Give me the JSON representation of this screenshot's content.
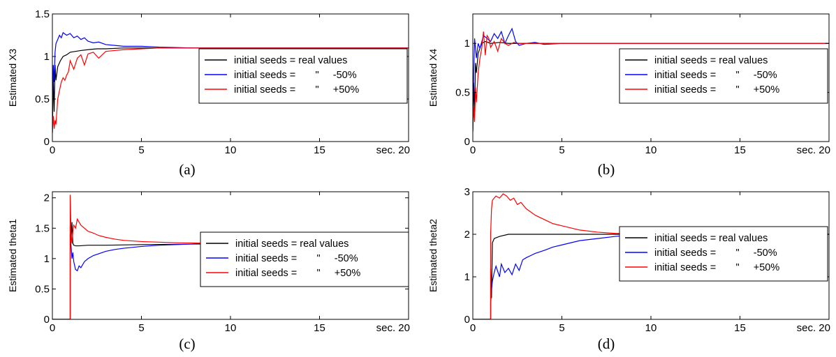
{
  "figure": {
    "panel_captions": [
      "(a)",
      "(b)",
      "(c)",
      "(d)"
    ]
  },
  "chart_data": [
    {
      "type": "line",
      "caption": "(a)",
      "title": "",
      "xlabel": "",
      "ylabel": "Estimated X3",
      "xlim": [
        0,
        20
      ],
      "ylim": [
        0,
        1.5
      ],
      "xticks": [
        0,
        5,
        10,
        15,
        20
      ],
      "xtick_labels": [
        "0",
        "5",
        "10",
        "15",
        "sec. 20"
      ],
      "yticks": [
        0,
        0.5,
        1,
        1.5
      ],
      "ytick_labels": [
        "0",
        "0.5",
        "1",
        "1.5"
      ],
      "grid": false,
      "legend_position": "center-right",
      "series": [
        {
          "name": "initial seeds = real values",
          "color": "#000000",
          "x": [
            0,
            0.05,
            0.1,
            0.15,
            0.2,
            0.3,
            0.45,
            0.6,
            0.8,
            1.0,
            1.3,
            1.6,
            2.0,
            2.5,
            3.0,
            4.0,
            5.0,
            6.0,
            7.0,
            8.0,
            10.0,
            12.0,
            15.0,
            20.0
          ],
          "y": [
            0.1,
            0.75,
            0.35,
            0.9,
            0.72,
            0.88,
            0.95,
            1.0,
            1.02,
            1.05,
            1.06,
            1.07,
            1.08,
            1.09,
            1.09,
            1.1,
            1.1,
            1.1,
            1.1,
            1.1,
            1.1,
            1.1,
            1.1,
            1.1
          ]
        },
        {
          "name": "initial seeds =       \"     -50%",
          "color": "#0000ff",
          "x": [
            0,
            0.05,
            0.1,
            0.15,
            0.2,
            0.3,
            0.4,
            0.5,
            0.6,
            0.8,
            1.0,
            1.2,
            1.4,
            1.6,
            1.8,
            2.0,
            2.3,
            2.6,
            3.0,
            3.5,
            4.0,
            5.0,
            6.0,
            8.0,
            10.0,
            15.0,
            20.0
          ],
          "y": [
            0.3,
            0.9,
            0.7,
            1.05,
            1.15,
            1.2,
            1.25,
            1.22,
            1.28,
            1.25,
            1.27,
            1.22,
            1.24,
            1.2,
            1.22,
            1.18,
            1.16,
            1.17,
            1.14,
            1.13,
            1.12,
            1.12,
            1.11,
            1.1,
            1.1,
            1.1,
            1.1
          ]
        },
        {
          "name": "initial seeds =       \"     +50%",
          "color": "#ff0000",
          "x": [
            0,
            0.05,
            0.1,
            0.15,
            0.2,
            0.3,
            0.4,
            0.5,
            0.6,
            0.7,
            0.8,
            0.9,
            1.0,
            1.2,
            1.4,
            1.6,
            1.8,
            2.0,
            2.3,
            2.6,
            3.0,
            3.5,
            4.0,
            5.0,
            6.0,
            8.0,
            10.0,
            20.0
          ],
          "y": [
            0.1,
            0.3,
            0.15,
            0.25,
            0.2,
            0.5,
            0.6,
            0.7,
            0.75,
            0.72,
            0.78,
            0.82,
            0.95,
            0.85,
            0.98,
            1.02,
            0.9,
            1.03,
            1.05,
            0.98,
            1.06,
            1.07,
            1.08,
            1.09,
            1.1,
            1.1,
            1.1,
            1.1
          ]
        }
      ]
    },
    {
      "type": "line",
      "caption": "(b)",
      "title": "",
      "xlabel": "",
      "ylabel": "Estimated X4",
      "xlim": [
        0,
        20
      ],
      "ylim": [
        0,
        1.3
      ],
      "xticks": [
        0,
        5,
        10,
        15,
        20
      ],
      "xtick_labels": [
        "0",
        "5",
        "10",
        "15",
        "sec. 20"
      ],
      "yticks": [
        0,
        0.5,
        1
      ],
      "ytick_labels": [
        "0",
        "0.5",
        "1"
      ],
      "grid": false,
      "legend_position": "center-right",
      "series": [
        {
          "name": "initial seeds = real values",
          "color": "#000000",
          "x": [
            0,
            0.05,
            0.1,
            0.15,
            0.2,
            0.3,
            0.4,
            0.5,
            0.7,
            1.0,
            1.5,
            2.0,
            3.0,
            5.0,
            10.0,
            20.0
          ],
          "y": [
            0.1,
            0.6,
            0.3,
            0.8,
            0.7,
            0.9,
            0.95,
            1.0,
            1.02,
            1.0,
            1.01,
            1.0,
            1.0,
            1.0,
            1.0,
            1.0
          ]
        },
        {
          "name": "initial seeds =       \"     -50%",
          "color": "#0000ff",
          "x": [
            0,
            0.05,
            0.1,
            0.15,
            0.2,
            0.3,
            0.4,
            0.6,
            0.8,
            1.0,
            1.2,
            1.4,
            1.6,
            1.8,
            2.0,
            2.2,
            2.4,
            2.6,
            3.0,
            3.5,
            4.0,
            5.0,
            5.2,
            10.0,
            20.0
          ],
          "y": [
            0.2,
            0.7,
            1.05,
            0.95,
            0.85,
            1.0,
            0.95,
            1.08,
            1.05,
            1.02,
            1.1,
            1.05,
            1.12,
            1.0,
            1.08,
            1.15,
            1.02,
            0.98,
            1.0,
            1.01,
            0.99,
            1.0,
            1.0,
            1.0,
            1.0
          ]
        },
        {
          "name": "initial seeds =       \"     +50%",
          "color": "#ff0000",
          "x": [
            0,
            0.05,
            0.1,
            0.15,
            0.2,
            0.3,
            0.4,
            0.5,
            0.6,
            0.7,
            0.8,
            0.9,
            1.0,
            1.2,
            1.4,
            1.6,
            1.8,
            2.0,
            2.3,
            2.6,
            3.0,
            4.0,
            5.0,
            10.0,
            20.0
          ],
          "y": [
            0.1,
            0.35,
            0.2,
            0.55,
            0.4,
            0.7,
            0.85,
            0.95,
            1.12,
            0.88,
            1.08,
            1.05,
            0.96,
            1.02,
            0.92,
            1.05,
            1.0,
            0.98,
            1.01,
            1.0,
            1.0,
            1.0,
            1.0,
            1.0,
            1.0
          ]
        }
      ]
    },
    {
      "type": "line",
      "caption": "(c)",
      "title": "",
      "xlabel": "",
      "ylabel": "Estimated theta1",
      "xlim": [
        0,
        20
      ],
      "ylim": [
        0,
        2.1
      ],
      "xticks": [
        0,
        5,
        10,
        15,
        20
      ],
      "xtick_labels": [
        "0",
        "5",
        "10",
        "15",
        "sec. 20"
      ],
      "yticks": [
        0,
        0.5,
        1,
        1.5,
        2
      ],
      "ytick_labels": [
        "0",
        "0.5",
        "1",
        "1.5",
        "2"
      ],
      "grid": false,
      "legend_position": "center-right",
      "series": [
        {
          "name": "initial seeds = real values",
          "color": "#000000",
          "x": [
            0,
            1.0,
            1.0,
            1.05,
            1.1,
            1.15,
            1.2,
            1.3,
            1.5,
            2.0,
            3.0,
            5.0,
            8.5,
            10.0,
            20.0
          ],
          "y": [
            0,
            0,
            1.55,
            1.3,
            1.6,
            1.25,
            1.22,
            1.21,
            1.21,
            1.22,
            1.22,
            1.23,
            1.24,
            1.25,
            1.25
          ]
        },
        {
          "name": "initial seeds =       \"     -50%",
          "color": "#0000ff",
          "x": [
            0,
            1.0,
            1.0,
            1.05,
            1.1,
            1.15,
            1.2,
            1.3,
            1.4,
            1.5,
            1.6,
            1.8,
            2.0,
            2.3,
            2.6,
            3.0,
            3.5,
            4.0,
            5.0,
            6.0,
            7.0,
            8.6,
            10.0,
            20.0
          ],
          "y": [
            0,
            0,
            1.4,
            1.2,
            1.0,
            1.1,
            0.95,
            0.82,
            0.8,
            0.88,
            0.85,
            0.95,
            1.0,
            1.05,
            1.08,
            1.12,
            1.15,
            1.17,
            1.2,
            1.22,
            1.23,
            1.25,
            1.25,
            1.25
          ]
        },
        {
          "name": "initial seeds =       \"     +50%",
          "color": "#ff0000",
          "x": [
            0,
            1.0,
            1.0,
            1.05,
            1.1,
            1.15,
            1.2,
            1.3,
            1.4,
            1.5,
            1.6,
            1.8,
            2.0,
            2.3,
            2.6,
            3.0,
            3.5,
            4.0,
            5.0,
            6.0,
            7.0,
            10.0,
            20.0
          ],
          "y": [
            0,
            0,
            2.05,
            1.4,
            1.25,
            1.45,
            1.55,
            1.5,
            1.65,
            1.6,
            1.55,
            1.5,
            1.45,
            1.42,
            1.38,
            1.35,
            1.32,
            1.3,
            1.28,
            1.27,
            1.26,
            1.25,
            1.25
          ]
        }
      ]
    },
    {
      "type": "line",
      "caption": "(d)",
      "title": "",
      "xlabel": "",
      "ylabel": "Estimated theta2",
      "xlim": [
        0,
        20
      ],
      "ylim": [
        0,
        3
      ],
      "xticks": [
        0,
        5,
        10,
        15,
        20
      ],
      "xtick_labels": [
        "0",
        "5",
        "10",
        "15",
        "sec. 20"
      ],
      "yticks": [
        0,
        1,
        2,
        3
      ],
      "ytick_labels": [
        "0",
        "1",
        "2",
        "3"
      ],
      "grid": false,
      "legend_position": "center-right",
      "series": [
        {
          "name": "initial seeds = real values",
          "color": "#000000",
          "x": [
            0,
            1.0,
            1.0,
            1.05,
            1.1,
            1.2,
            1.5,
            2.0,
            3.0,
            5.0,
            8.0,
            10.0,
            20.0
          ],
          "y": [
            0,
            0,
            1.2,
            0.5,
            1.8,
            1.9,
            1.95,
            2.0,
            2.0,
            2.0,
            2.0,
            2.0,
            2.0
          ]
        },
        {
          "name": "initial seeds =       \"     -50%",
          "color": "#0000ff",
          "x": [
            0,
            1.0,
            1.0,
            1.05,
            1.1,
            1.2,
            1.3,
            1.5,
            1.6,
            1.8,
            2.0,
            2.2,
            2.4,
            2.6,
            2.8,
            3.0,
            3.5,
            4.0,
            4.5,
            5.0,
            6.0,
            7.0,
            8.0,
            9.0,
            10.0,
            20.0
          ],
          "y": [
            0,
            0,
            0.4,
            0.7,
            0.9,
            1.1,
            1.25,
            1.0,
            1.3,
            1.1,
            1.2,
            1.05,
            1.3,
            1.15,
            1.4,
            1.45,
            1.55,
            1.62,
            1.7,
            1.75,
            1.85,
            1.9,
            1.95,
            1.98,
            2.0,
            2.0
          ]
        },
        {
          "name": "initial seeds =       \"     +50%",
          "color": "#ff0000",
          "x": [
            0,
            1.0,
            1.0,
            1.05,
            1.1,
            1.2,
            1.3,
            1.5,
            1.7,
            1.9,
            2.1,
            2.3,
            2.5,
            2.7,
            3.0,
            3.5,
            4.0,
            4.5,
            5.0,
            6.0,
            7.0,
            8.0,
            9.0,
            10.0,
            20.0
          ],
          "y": [
            0,
            0,
            2.0,
            2.6,
            2.8,
            2.85,
            2.9,
            2.85,
            2.95,
            2.9,
            2.8,
            2.85,
            2.7,
            2.75,
            2.6,
            2.45,
            2.35,
            2.25,
            2.2,
            2.1,
            2.05,
            2.02,
            2.01,
            2.0,
            2.0
          ]
        }
      ]
    }
  ]
}
